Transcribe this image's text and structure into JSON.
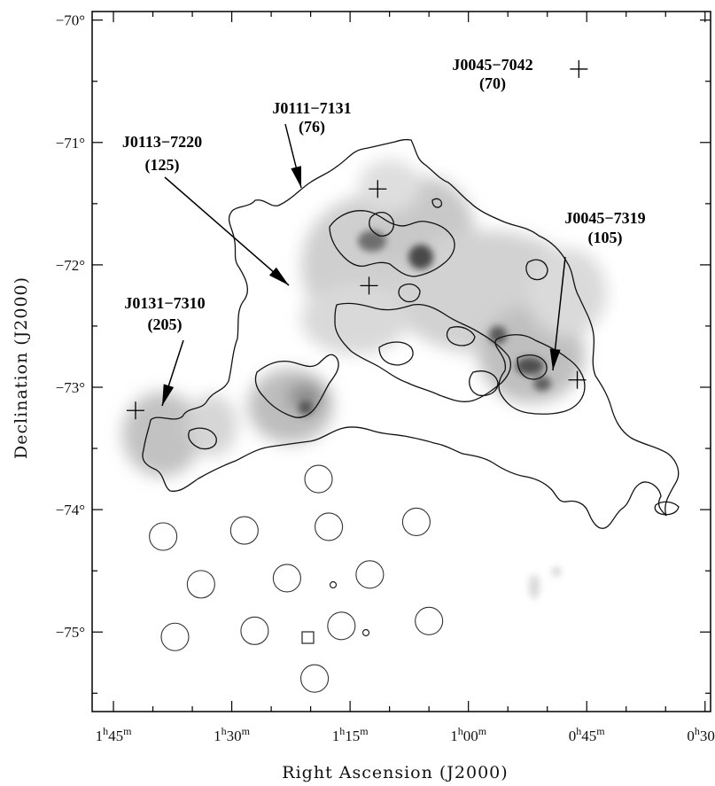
{
  "chart_data": {
    "type": "scatter",
    "title": "",
    "xlabel": "Right Ascension (J2000)",
    "ylabel": "Declination (J2000)",
    "x_ticks": [
      {
        "ra_min": 105,
        "h": "1",
        "m": "45"
      },
      {
        "ra_min": 90,
        "h": "1",
        "m": "30"
      },
      {
        "ra_min": 75,
        "h": "1",
        "m": "15"
      },
      {
        "ra_min": 60,
        "h": "1",
        "m": "00"
      },
      {
        "ra_min": 45,
        "h": "0",
        "m": "45"
      },
      {
        "ra_min": 30,
        "h": "0",
        "m": "30"
      }
    ],
    "y_ticks": [
      {
        "dec": -70,
        "label": "−70°"
      },
      {
        "dec": -71,
        "label": "−71°"
      },
      {
        "dec": -72,
        "label": "−72°"
      },
      {
        "dec": -73,
        "label": "−73°"
      },
      {
        "dec": -74,
        "label": "−74°"
      },
      {
        "dec": -75,
        "label": "−75°"
      }
    ],
    "xlim_ra_min": [
      107.7,
      29.3
    ],
    "ylim_dec": [
      -75.65,
      -69.93
    ],
    "grid": false,
    "sources": [
      {
        "name": "J0045−7042",
        "count": "(70)",
        "ra_min": 46.0,
        "dec": -70.4
      },
      {
        "name": "J0111−7131",
        "count": "(76)",
        "ra_min": 71.5,
        "dec": -71.38
      },
      {
        "name": "J0113−7220",
        "count": "(125)",
        "ra_min": 72.6,
        "dec": -72.17
      },
      {
        "name": "J0045−7319",
        "count": "(105)",
        "ra_min": 46.2,
        "dec": -72.94
      },
      {
        "name": "J0131−7310",
        "count": "(205)",
        "ra_min": 102.2,
        "dec": -73.19
      }
    ],
    "survey_fields": [
      {
        "ra_min": 79.0,
        "dec": -73.75
      },
      {
        "ra_min": 98.7,
        "dec": -74.22
      },
      {
        "ra_min": 88.4,
        "dec": -74.17
      },
      {
        "ra_min": 77.7,
        "dec": -74.14
      },
      {
        "ra_min": 66.6,
        "dec": -74.1
      },
      {
        "ra_min": 93.9,
        "dec": -74.61
      },
      {
        "ra_min": 83.0,
        "dec": -74.56
      },
      {
        "ra_min": 72.5,
        "dec": -74.53
      },
      {
        "ra_min": 97.2,
        "dec": -75.04
      },
      {
        "ra_min": 87.1,
        "dec": -74.99
      },
      {
        "ra_min": 76.1,
        "dec": -74.95
      },
      {
        "ra_min": 65.0,
        "dec": -74.91
      },
      {
        "ra_min": 79.5,
        "dec": -75.38
      }
    ]
  }
}
